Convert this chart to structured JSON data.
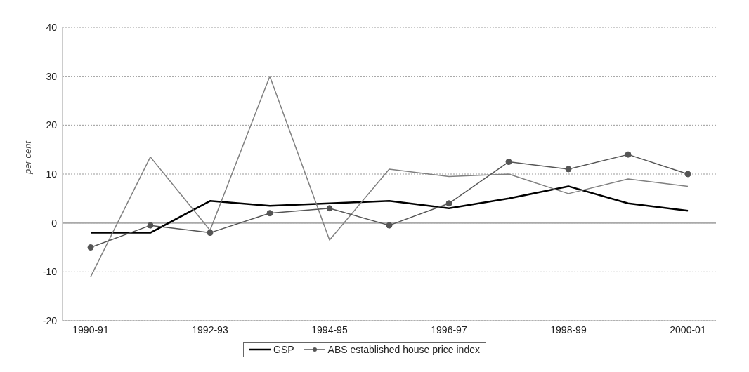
{
  "chart_data": {
    "type": "line",
    "ylabel": "per cent",
    "categories": [
      "1990-91",
      null,
      "1992-93",
      null,
      "1994-95",
      null,
      "1996-97",
      null,
      "1998-99",
      null,
      "2000-01"
    ],
    "series": [
      {
        "name": "GSP",
        "color": "#000000",
        "marker": "none",
        "values": [
          -2,
          -2,
          4.5,
          3.5,
          4,
          4.5,
          3,
          5,
          7.5,
          4,
          2.5
        ]
      },
      {
        "color": "#808080",
        "marker": "none",
        "values": [
          -11,
          13.5,
          -1.5,
          30,
          -3.5,
          11,
          9.5,
          10,
          6,
          9,
          7.5
        ]
      },
      {
        "name": "ABS established house price index",
        "color": "#555555",
        "marker": "circle",
        "values": [
          -5,
          -0.5,
          -2,
          2,
          3,
          -0.5,
          4,
          12.5,
          11,
          14,
          10
        ]
      }
    ],
    "ylim": [
      -20,
      40
    ],
    "yticks": [
      -20,
      -10,
      0,
      10,
      20,
      30,
      40
    ],
    "grid": "y",
    "legend": "bottom"
  }
}
